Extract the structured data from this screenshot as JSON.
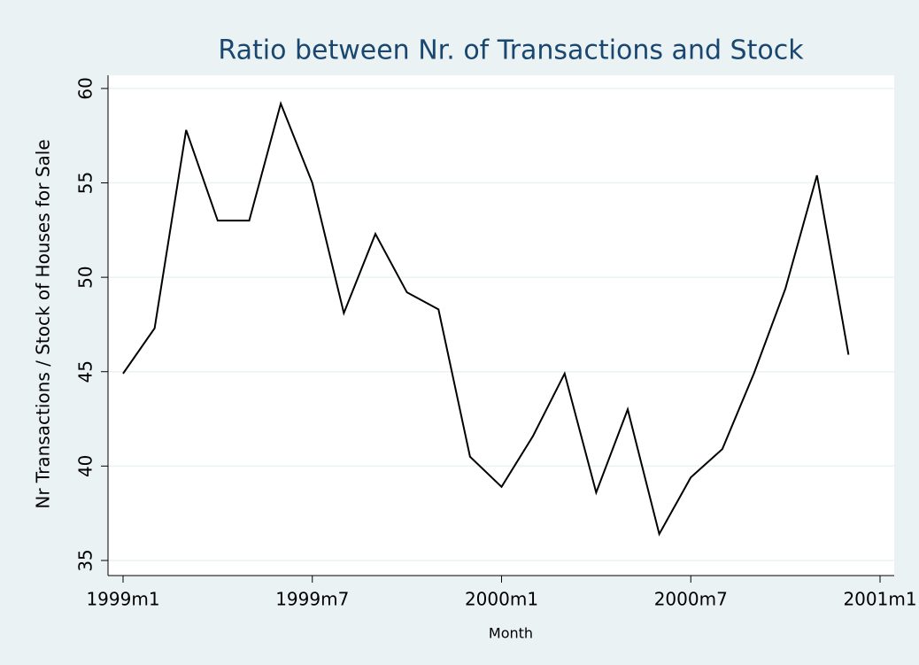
{
  "chart_data": {
    "type": "line",
    "title": "Ratio between Nr. of Transactions and Stock",
    "x_label": "Month",
    "y_label": "Nr Transactions / Stock of Houses for Sale",
    "categories": [
      "1999m1",
      null,
      null,
      null,
      null,
      null,
      "1999m7",
      null,
      null,
      null,
      null,
      null,
      "2000m1",
      null,
      null,
      null,
      null,
      null,
      "2000m7",
      null,
      null,
      null,
      null,
      null,
      "2001m1"
    ],
    "series": [
      {
        "color": "#000000",
        "values": [
          44.9,
          47.3,
          57.8,
          53.0,
          53.0,
          59.2,
          55.0,
          48.1,
          52.3,
          49.2,
          48.3,
          40.5,
          38.9,
          41.6,
          44.9,
          38.6,
          43.0,
          36.4,
          39.4,
          40.9,
          44.9,
          49.4,
          55.4,
          45.9,
          null
        ]
      }
    ],
    "ylim": [
      34.2,
      60.7
    ],
    "yticks": [
      35,
      40,
      45,
      50,
      55,
      60
    ],
    "grid": true
  }
}
